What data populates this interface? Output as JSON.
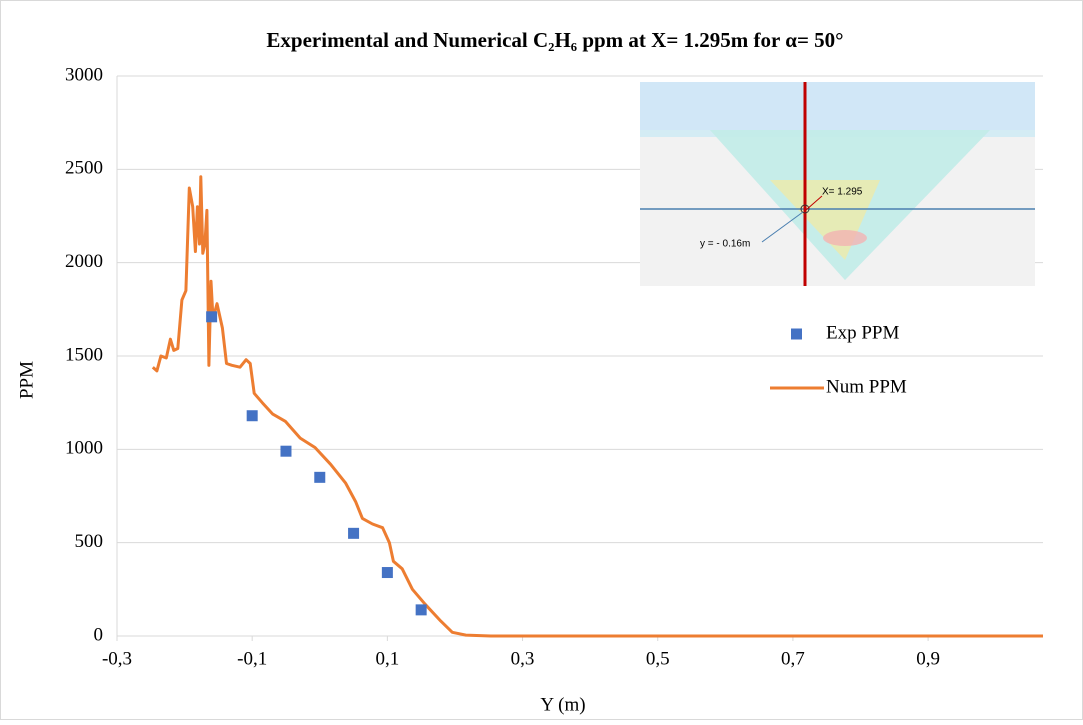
{
  "chart_data": {
    "type": "scatter-line",
    "title": "Experimental and Numerical C₂H₆ ppm at X= 1.295m for α= 50°",
    "x_label": "Y (m)",
    "y_label": "PPM",
    "xlim": [
      -0.3,
      1.07
    ],
    "ylim": [
      0,
      3000
    ],
    "xticks": [
      {
        "value": -0.3,
        "label": "-0,3"
      },
      {
        "value": -0.1,
        "label": "-0,1"
      },
      {
        "value": 0.1,
        "label": "0,1"
      },
      {
        "value": 0.3,
        "label": "0,3"
      },
      {
        "value": 0.5,
        "label": "0,5"
      },
      {
        "value": 0.7,
        "label": "0,7"
      },
      {
        "value": 0.9,
        "label": "0,9"
      }
    ],
    "yticks": [
      0,
      500,
      1000,
      1500,
      2000,
      2500,
      3000
    ],
    "grid": true,
    "legend": "right",
    "annotations": [
      "X= 1.295",
      "y = - 0.16m"
    ],
    "series": [
      {
        "name": "Exp PPM",
        "kind": "marker",
        "color": "#4472c4",
        "x": [
          -0.16,
          -0.1,
          -0.05,
          0,
          0.05,
          0.1,
          0.15
        ],
        "values": [
          1710,
          1180,
          990,
          850,
          550,
          340,
          140
        ]
      },
      {
        "name": "Num PPM",
        "kind": "line",
        "color": "#ed7d31",
        "x": [
          -0.247,
          -0.241,
          -0.235,
          -0.227,
          -0.221,
          -0.216,
          -0.21,
          -0.204,
          -0.198,
          -0.193,
          -0.188,
          -0.184,
          -0.181,
          -0.178,
          -0.176,
          -0.173,
          -0.17,
          -0.167,
          -0.164,
          -0.161,
          -0.158,
          -0.152,
          -0.144,
          -0.138,
          -0.13,
          -0.118,
          -0.109,
          -0.103,
          -0.097,
          -0.085,
          -0.07,
          -0.051,
          -0.029,
          -0.007,
          0.016,
          0.038,
          0.053,
          0.063,
          0.078,
          0.093,
          0.103,
          0.109,
          0.122,
          0.137,
          0.156,
          0.179,
          0.196,
          0.216,
          0.253,
          1.07
        ],
        "values": [
          1440,
          1420,
          1500,
          1490,
          1590,
          1530,
          1540,
          1800,
          1850,
          2400,
          2300,
          2060,
          2300,
          2100,
          2460,
          2050,
          2100,
          2280,
          1450,
          1900,
          1700,
          1780,
          1650,
          1460,
          1450,
          1440,
          1480,
          1460,
          1300,
          1250,
          1190,
          1150,
          1060,
          1010,
          920,
          820,
          720,
          630,
          600,
          580,
          500,
          400,
          360,
          250,
          170,
          80,
          20,
          5,
          0,
          0
        ]
      }
    ]
  }
}
